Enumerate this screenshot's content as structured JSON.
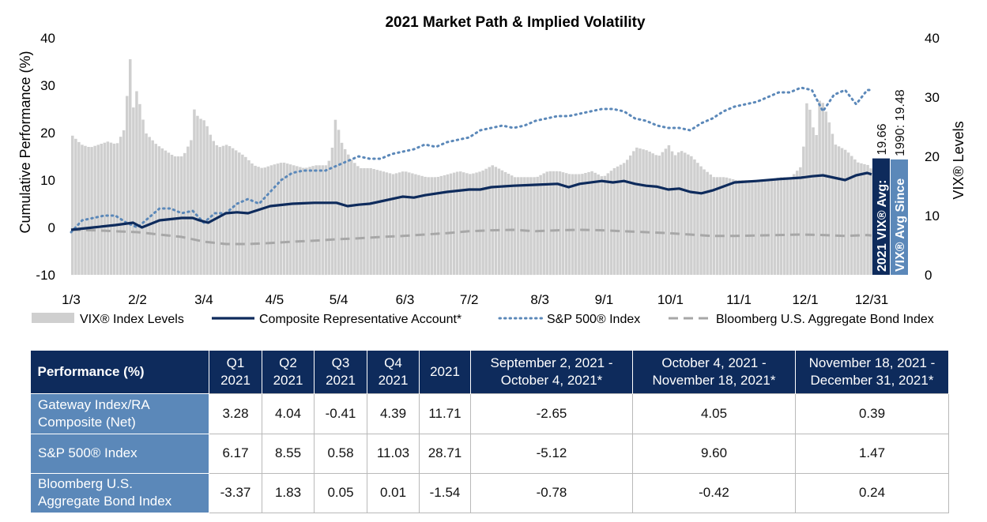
{
  "chart_data": {
    "type": "bar+line",
    "title": "2021 Market Path & Implied Volatility",
    "ylabel_left": "Cumulative Performance (%)",
    "ylabel_right": "VIX® Levels",
    "ylim_left": [
      -10,
      40
    ],
    "ylim_right": [
      0,
      40
    ],
    "yticks_left": [
      "-10",
      "0",
      "10",
      "20",
      "30",
      "40"
    ],
    "yticks_right": [
      "0",
      "10",
      "20",
      "30",
      "40"
    ],
    "x_tick_labels": [
      "1/3",
      "2/2",
      "3/4",
      "4/5",
      "5/4",
      "6/3",
      "7/2",
      "8/3",
      "9/1",
      "10/1",
      "11/1",
      "12/1",
      "12/31"
    ],
    "x_range_days": [
      0,
      362
    ],
    "x_tick_days": [
      0,
      30,
      60,
      92,
      121,
      151,
      180,
      212,
      241,
      271,
      302,
      332,
      362
    ],
    "grid": false,
    "legend_position": "bottom",
    "vix_levels": {
      "name": "VIX® Index Levels",
      "color": "#cfcfcf",
      "axis": "right",
      "anchors_days": [
        0,
        4,
        8,
        12,
        16,
        20,
        24,
        25,
        26,
        27,
        28,
        29,
        31,
        33,
        38,
        42,
        46,
        50,
        54,
        55,
        57,
        60,
        63,
        66,
        70,
        74,
        78,
        82,
        86,
        90,
        95,
        100,
        105,
        110,
        115,
        117,
        119,
        122,
        126,
        130,
        135,
        140,
        145,
        150,
        155,
        160,
        165,
        170,
        175,
        180,
        185,
        190,
        195,
        200,
        205,
        210,
        215,
        220,
        225,
        230,
        235,
        240,
        245,
        250,
        255,
        260,
        265,
        270,
        272,
        275,
        280,
        285,
        290,
        295,
        300,
        305,
        310,
        315,
        320,
        325,
        330,
        332,
        334,
        336,
        338,
        340,
        342,
        345,
        350,
        355,
        360,
        362
      ],
      "anchors_values": [
        23.5,
        22,
        21.5,
        22,
        22.5,
        22,
        25,
        33,
        37,
        31,
        26,
        31,
        28,
        24,
        22,
        21,
        20,
        20,
        23,
        28,
        26.5,
        26,
        23,
        21.5,
        22,
        21,
        20,
        18.5,
        18,
        18.5,
        19,
        18.5,
        18,
        18.5,
        18.5,
        20,
        26.5,
        22,
        19.5,
        18,
        18,
        17.5,
        17,
        17.5,
        17,
        16.5,
        16.5,
        17,
        17.5,
        17,
        17.5,
        18.5,
        17.5,
        16.5,
        16.5,
        16.5,
        17.5,
        17.5,
        17,
        17,
        17.5,
        16.5,
        18,
        19,
        21.5,
        21,
        20,
        22,
        20,
        21,
        20,
        18,
        16.5,
        16.5,
        16,
        16,
        16,
        16,
        16.5,
        16.5,
        18.5,
        29,
        27.5,
        22,
        30,
        28.5,
        26,
        22,
        21,
        19,
        18.5,
        17.5
      ]
    },
    "series": [
      {
        "name": "Composite Representative Account*",
        "color": "#0e2b5c",
        "style": "solid",
        "axis": "left",
        "x_days": [
          0,
          10,
          20,
          28,
          32,
          40,
          50,
          55,
          58,
          62,
          66,
          70,
          75,
          80,
          90,
          100,
          110,
          120,
          125,
          130,
          135,
          140,
          150,
          155,
          160,
          170,
          180,
          185,
          190,
          200,
          210,
          220,
          225,
          230,
          240,
          245,
          250,
          255,
          260,
          265,
          270,
          275,
          280,
          285,
          290,
          300,
          310,
          320,
          330,
          335,
          340,
          345,
          350,
          355,
          360,
          362
        ],
        "y": [
          -0.5,
          0,
          0.5,
          1,
          0,
          1.5,
          2,
          2,
          1.5,
          1,
          2,
          3,
          3.2,
          3,
          4.5,
          5,
          5.2,
          5.2,
          4.5,
          4.8,
          5,
          5.5,
          6.5,
          6.3,
          6.8,
          7.5,
          8,
          8,
          8.5,
          8.8,
          9,
          9.2,
          8.5,
          9.2,
          9.8,
          9.5,
          9.8,
          9.2,
          8.8,
          8.6,
          8,
          8.2,
          7.5,
          7.2,
          7.8,
          9.5,
          9.8,
          10.2,
          10.5,
          10.8,
          11,
          10.5,
          10,
          11,
          11.5,
          11.2
        ]
      },
      {
        "name": "S&P 500® Index",
        "color": "#5b88b9",
        "style": "dotted",
        "axis": "left",
        "x_days": [
          0,
          5,
          10,
          15,
          20,
          25,
          30,
          35,
          40,
          45,
          50,
          55,
          60,
          65,
          70,
          75,
          80,
          85,
          90,
          95,
          100,
          105,
          110,
          115,
          120,
          125,
          130,
          135,
          140,
          145,
          150,
          155,
          160,
          165,
          170,
          175,
          180,
          185,
          190,
          195,
          200,
          205,
          210,
          215,
          220,
          225,
          230,
          235,
          240,
          245,
          250,
          255,
          260,
          265,
          270,
          275,
          280,
          285,
          290,
          295,
          300,
          305,
          310,
          315,
          320,
          325,
          330,
          335,
          340,
          345,
          350,
          355,
          360,
          362
        ],
        "y": [
          -1,
          1.5,
          2,
          2.5,
          2.5,
          1,
          0,
          2,
          4,
          4,
          3,
          3.5,
          1,
          3,
          3,
          5,
          6,
          5,
          7.5,
          10,
          11.5,
          12,
          12,
          12,
          13,
          14,
          15,
          14.5,
          14.5,
          15.5,
          16,
          16.5,
          17.5,
          17,
          18,
          18.5,
          19,
          20.5,
          21,
          21.5,
          21,
          21.5,
          22.5,
          23,
          23.5,
          23.5,
          24,
          24.5,
          25,
          25,
          24.5,
          23,
          22.5,
          21.5,
          21,
          21,
          20.5,
          22,
          23,
          24.5,
          25.5,
          26,
          26.5,
          27.5,
          28.5,
          28.5,
          29.5,
          29,
          24.5,
          28,
          29,
          26,
          29,
          29
        ]
      },
      {
        "name": "Bloomberg U.S. Aggregate Bond Index",
        "color": "#a7a7a7",
        "style": "dashed",
        "axis": "left",
        "x_days": [
          0,
          10,
          20,
          30,
          40,
          50,
          60,
          70,
          80,
          90,
          100,
          110,
          120,
          130,
          140,
          150,
          160,
          170,
          180,
          190,
          200,
          210,
          220,
          230,
          240,
          250,
          260,
          270,
          280,
          290,
          300,
          310,
          320,
          330,
          340,
          350,
          360,
          362
        ],
        "y": [
          -0.5,
          -0.6,
          -0.8,
          -1,
          -1.5,
          -2,
          -3,
          -3.5,
          -3.5,
          -3.3,
          -3,
          -2.8,
          -2.5,
          -2.3,
          -2,
          -1.8,
          -1.5,
          -1.2,
          -0.8,
          -0.6,
          -0.5,
          -0.8,
          -0.6,
          -0.5,
          -0.6,
          -0.8,
          -1,
          -1.2,
          -1.5,
          -1.8,
          -1.8,
          -1.7,
          -1.6,
          -1.5,
          -1.6,
          -1.8,
          -1.6,
          -1.7
        ]
      }
    ],
    "vix_avg_2021": {
      "label": "2021 VIX® Avg:",
      "value": "19.66",
      "bar_value": 19.66,
      "color": "#0e2b5c"
    },
    "vix_avg_1990": {
      "label": "VIX® Avg Since",
      "value": "1990: 19.48",
      "bar_value": 19.48,
      "color": "#5b88b9"
    }
  },
  "table": {
    "header": {
      "row_label": "Performance (%)",
      "columns": [
        [
          "Q1",
          "2021"
        ],
        [
          "Q2",
          "2021"
        ],
        [
          "Q3",
          "2021"
        ],
        [
          "Q4",
          "2021"
        ],
        [
          "2021"
        ],
        [
          "September 2, 2021 -",
          "October 4, 2021*"
        ],
        [
          "October 4, 2021 -",
          "November 18, 2021*"
        ],
        [
          "November 18, 2021 -",
          "December 31, 2021*"
        ]
      ]
    },
    "rows": [
      {
        "label": [
          "Gateway Index/RA",
          "Composite (Net)"
        ],
        "values": [
          "3.28",
          "4.04",
          "-0.41",
          "4.39",
          "11.71",
          "-2.65",
          "4.05",
          "0.39"
        ]
      },
      {
        "label": [
          "S&P 500® Index"
        ],
        "values": [
          "6.17",
          "8.55",
          "0.58",
          "11.03",
          "28.71",
          "-5.12",
          "9.60",
          "1.47"
        ]
      },
      {
        "label": [
          "Bloomberg U.S.",
          "Aggregate Bond Index"
        ],
        "values": [
          "-3.37",
          "1.83",
          "0.05",
          "0.01",
          "-1.54",
          "-0.78",
          "-0.42",
          "0.24"
        ]
      }
    ]
  }
}
